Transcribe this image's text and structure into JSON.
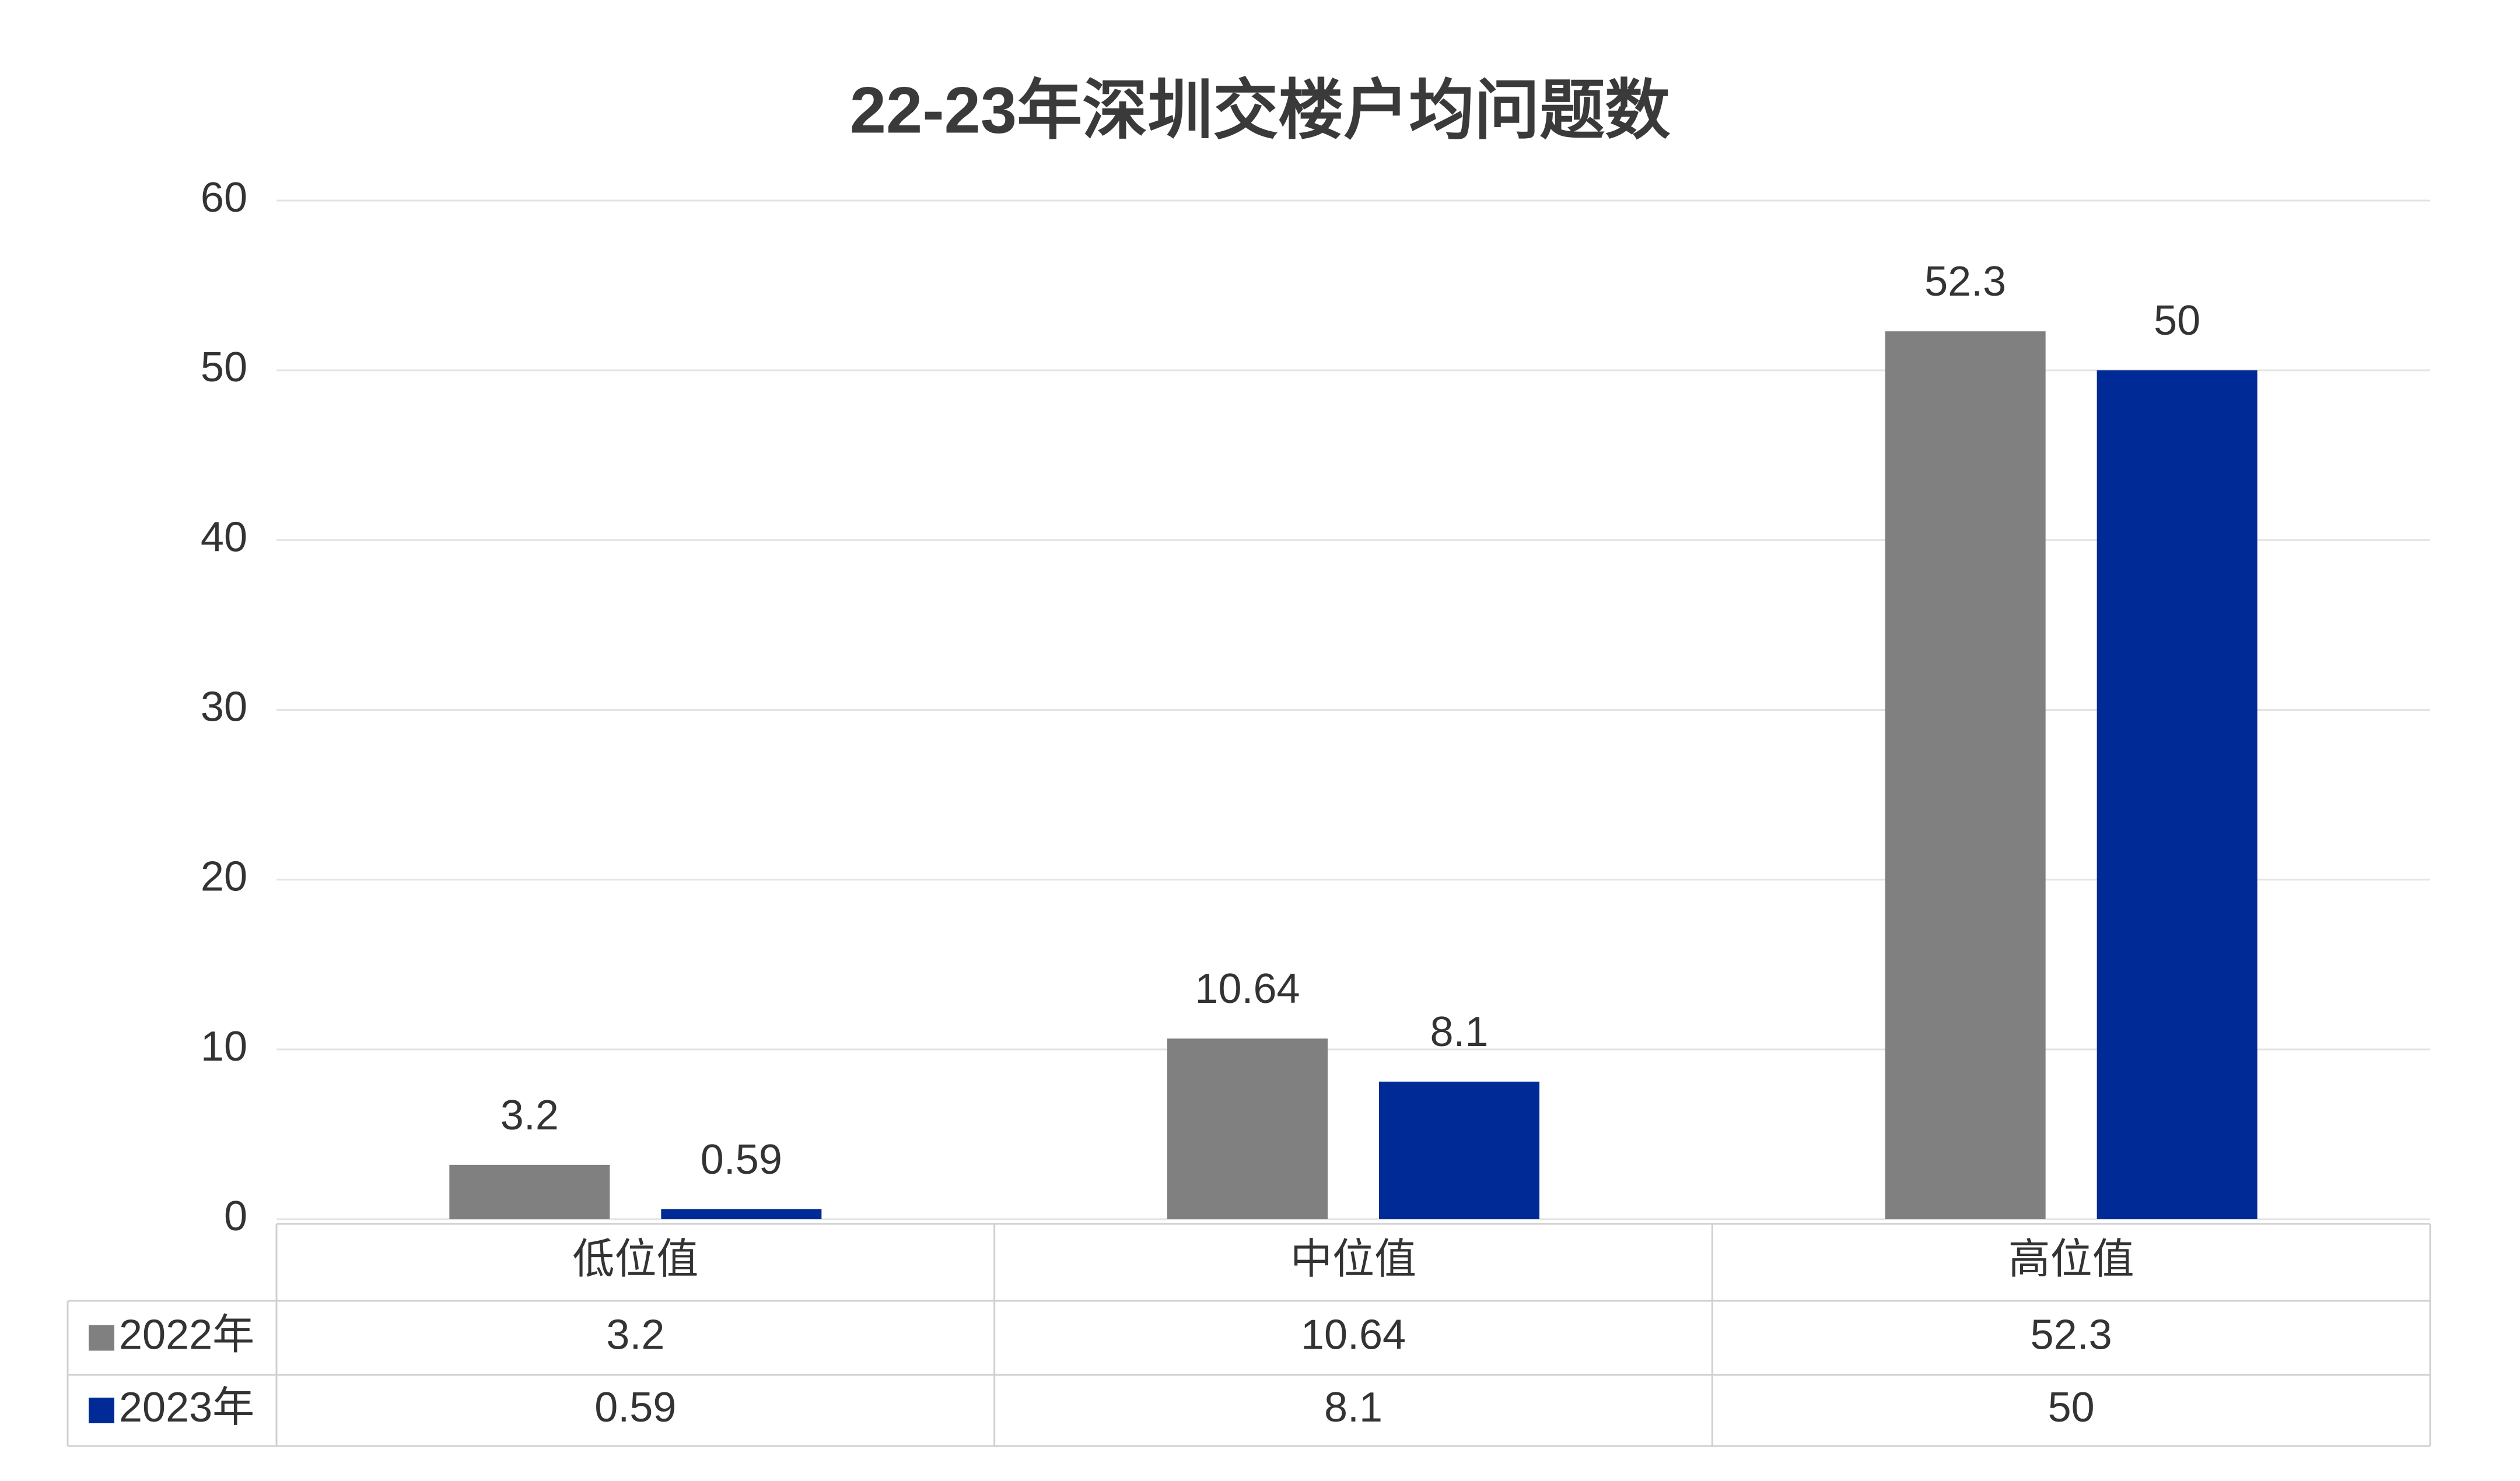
{
  "chart_data": {
    "type": "bar",
    "title": "22-23年深圳交楼户均问题数",
    "categories": [
      "低位值",
      "中位值",
      "高位值"
    ],
    "series": [
      {
        "name": "2022年",
        "color": "#808080",
        "values": [
          3.2,
          10.64,
          52.3
        ]
      },
      {
        "name": "2023年",
        "color": "#002b96",
        "values": [
          0.59,
          8.1,
          50
        ]
      }
    ],
    "ylim": [
      0,
      60
    ],
    "yticks": [
      0,
      10,
      20,
      30,
      40,
      50,
      60
    ],
    "grid": true,
    "data_table": true
  }
}
